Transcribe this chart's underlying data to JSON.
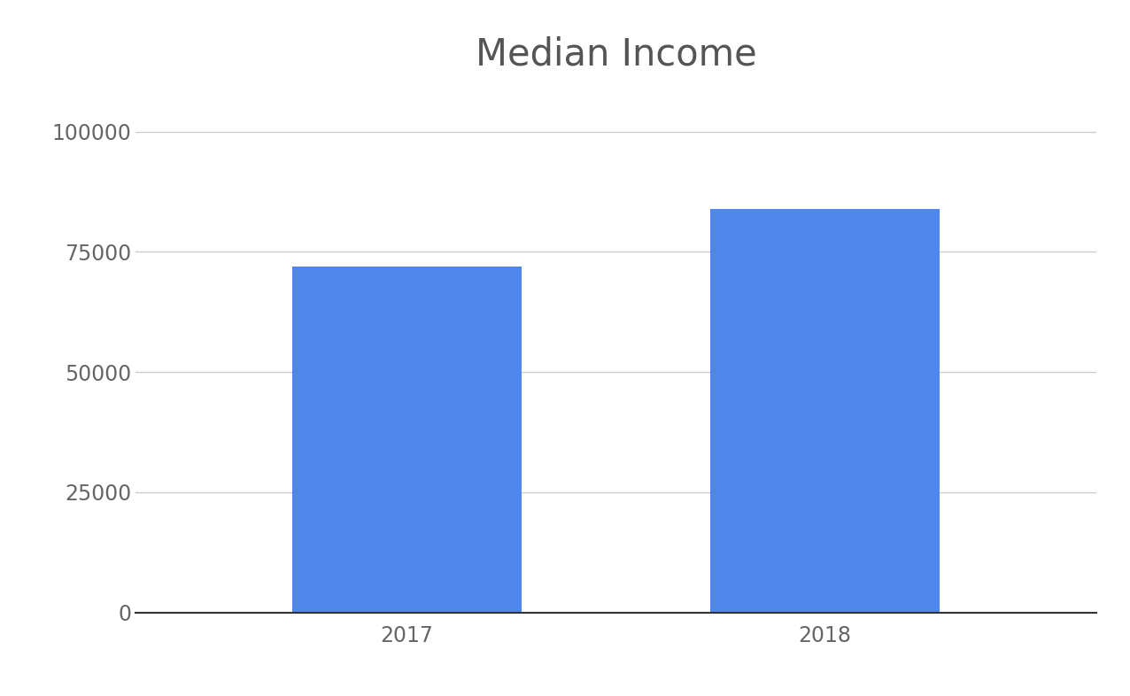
{
  "title": "Median Income",
  "categories": [
    "2017",
    "2018"
  ],
  "values": [
    72000,
    84000
  ],
  "bar_color": "#4F86EC",
  "background_color": "#ffffff",
  "ylim": [
    0,
    110000
  ],
  "yticks": [
    0,
    25000,
    50000,
    75000,
    100000
  ],
  "title_fontsize": 30,
  "tick_fontsize": 17,
  "grid_color": "#cccccc",
  "bar_width": 0.55
}
